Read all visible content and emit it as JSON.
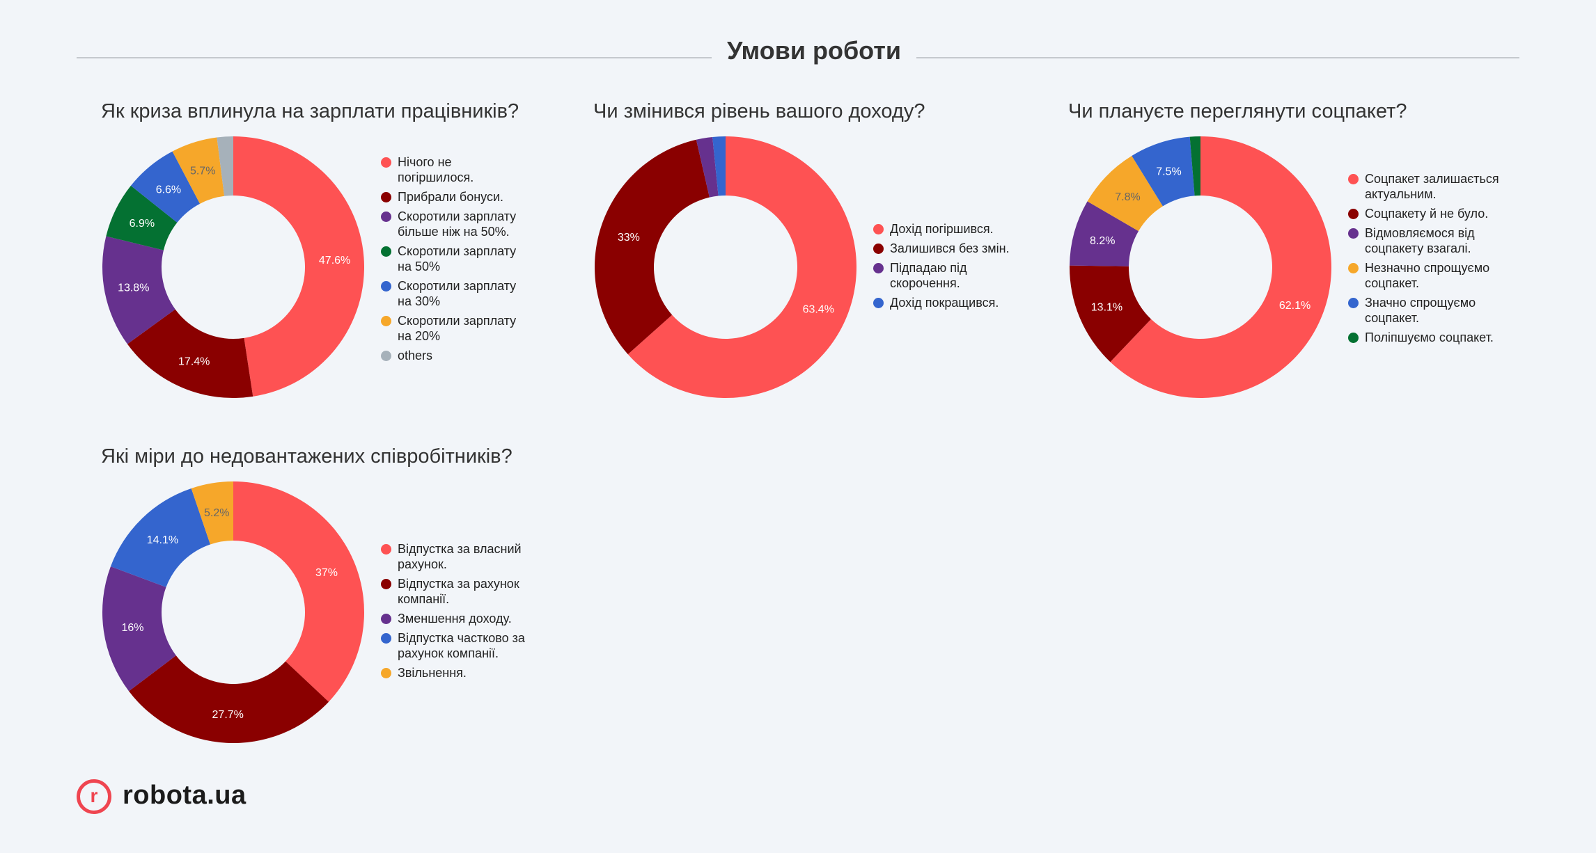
{
  "header": {
    "title": "Умови роботи"
  },
  "logo": {
    "text": "robota.ua",
    "mark": "r"
  },
  "colors": {
    "red": "#fe5253",
    "maroon": "#8a0000",
    "purple": "#66318e",
    "green": "#047132",
    "blue": "#3465ce",
    "orange": "#f6a72a",
    "gray": "#a6b1ba"
  },
  "chart_data": [
    {
      "type": "pie",
      "title": "Як криза вплинула на зарплати працівників?",
      "categories": [
        "Нічого не погіршилося.",
        "Прибрали бонуси.",
        "Скоротили зарплату більше ніж на 50%.",
        "Скоротили зарплату на 50%",
        "Скоротили зарплату на 30%",
        "Скоротили зарплату на 20%",
        "others"
      ],
      "legend": [
        "Нічого не погіршилося.",
        "Прибрали бонуси.",
        "Скоротили зарплату більше ніж на 50%.",
        "Скоротили зарплату на 50%",
        "Скоротили зарплату на 30%",
        "Скоротили зарплату на 20%",
        "others"
      ],
      "values": [
        47.6,
        17.4,
        13.8,
        6.9,
        6.6,
        5.7,
        2.0
      ],
      "labels": [
        "47.6%",
        "17.4%",
        "13.8%",
        "6.9%",
        "6.6%",
        "5.7%",
        ""
      ],
      "colors": [
        "#fe5253",
        "#8a0000",
        "#66318e",
        "#047132",
        "#3465ce",
        "#f6a72a",
        "#a6b1ba"
      ],
      "label_colors": [
        "#ffffff",
        "#ffffff",
        "#ffffff",
        "#ffffff",
        "#ffffff",
        "#666666",
        "#ffffff"
      ],
      "legend_position": "right"
    },
    {
      "type": "pie",
      "title": "Чи змінився рівень вашого доходу?",
      "categories": [
        "Дохід погіршився.",
        "Залишився без змін.",
        "Підпадаю під скорочення.",
        "Дохід покращився."
      ],
      "legend": [
        "Дохід погіршився.",
        "Залишився без змін.",
        "Підпадаю під скорочення.",
        "Дохід покращився."
      ],
      "values": [
        63.4,
        33.0,
        2.0,
        1.6
      ],
      "labels": [
        "63.4%",
        "33%",
        "",
        ""
      ],
      "colors": [
        "#fe5253",
        "#8a0000",
        "#66318e",
        "#3465ce"
      ],
      "label_colors": [
        "#ffffff",
        "#ffffff",
        "#ffffff",
        "#ffffff"
      ],
      "legend_position": "right"
    },
    {
      "type": "pie",
      "title": "Чи плануєте переглянути соцпакет?",
      "categories": [
        "Соцпакет залишається актуальним.",
        "Соцпакету й не було.",
        "Відмовляємося від соцпакету взагалі.",
        "Незначно спрощуємо соцпакет.",
        "Значно спрощуємо соцпакет.",
        "Поліпшуємо соцпакет."
      ],
      "legend": [
        "Соцпакет залишається актуальним.",
        "Соцпакету й не було.",
        "Відмовляємося від соцпакету взагалі.",
        "Незначно спрощуємо соцпакет.",
        "Значно спрощуємо соцпакет.",
        "Поліпшуємо соцпакет."
      ],
      "values": [
        62.1,
        13.1,
        8.2,
        7.8,
        7.5,
        1.3
      ],
      "labels": [
        "62.1%",
        "13.1%",
        "8.2%",
        "7.8%",
        "7.5%",
        ""
      ],
      "colors": [
        "#fe5253",
        "#8a0000",
        "#66318e",
        "#f6a72a",
        "#3465ce",
        "#047132"
      ],
      "label_colors": [
        "#ffffff",
        "#ffffff",
        "#ffffff",
        "#666666",
        "#ffffff",
        "#ffffff"
      ],
      "legend_position": "right"
    },
    {
      "type": "pie",
      "title": "Які міри до недовантажених співробітників?",
      "categories": [
        "Відпустка за власний рахунок.",
        "Відпустка за рахунок компанії.",
        "Зменшення доходу.",
        "Відпустка частково за рахунок компанії.",
        "Звільнення."
      ],
      "legend": [
        "Відпустка за власний рахунок.",
        "Відпустка за рахунок компанії.",
        "Зменшення доходу.",
        "Відпустка частково за рахунок компанії.",
        "Звільнення."
      ],
      "values": [
        37.0,
        27.7,
        16.0,
        14.1,
        5.2
      ],
      "labels": [
        "37%",
        "27.7%",
        "16%",
        "14.1%",
        "5.2%"
      ],
      "colors": [
        "#fe5253",
        "#8a0000",
        "#66318e",
        "#3465ce",
        "#f6a72a"
      ],
      "label_colors": [
        "#ffffff",
        "#ffffff",
        "#ffffff",
        "#ffffff",
        "#666666"
      ],
      "legend_position": "right"
    }
  ]
}
